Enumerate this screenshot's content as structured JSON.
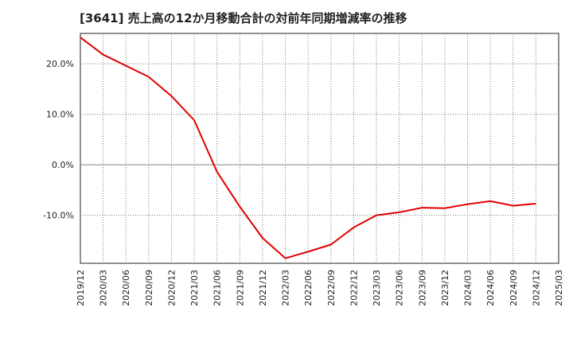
{
  "chart_data": {
    "type": "line",
    "title": "[3641]  売上高の12か月移動合計の対前年同期増減率の推移",
    "xlabel": "",
    "ylabel": "",
    "ylim": [
      -19.5,
      26.0
    ],
    "yticks": [
      -10,
      0,
      10,
      20
    ],
    "ytick_labels": [
      "-10.0%",
      "0.0%",
      "10.0%",
      "20.0%"
    ],
    "x_labels": [
      "2019/12",
      "2020/03",
      "2020/06",
      "2020/09",
      "2020/12",
      "2021/03",
      "2021/06",
      "2021/09",
      "2021/12",
      "2022/03",
      "2022/06",
      "2022/09",
      "2022/12",
      "2023/03",
      "2023/06",
      "2023/09",
      "2023/12",
      "2024/03",
      "2024/06",
      "2024/09",
      "2024/12",
      "2025/03"
    ],
    "series": [
      {
        "name": "増減率",
        "color": "#e00000",
        "values": [
          25.2,
          21.8,
          19.6,
          17.4,
          13.6,
          8.8,
          -1.4,
          -8.3,
          -14.5,
          -18.5,
          -17.2,
          -15.8,
          -12.4,
          -10.0,
          -9.4,
          -8.5,
          -8.6,
          -7.8,
          -7.2,
          -8.1,
          -7.7,
          null
        ]
      }
    ],
    "grid": true,
    "legend": "none"
  }
}
